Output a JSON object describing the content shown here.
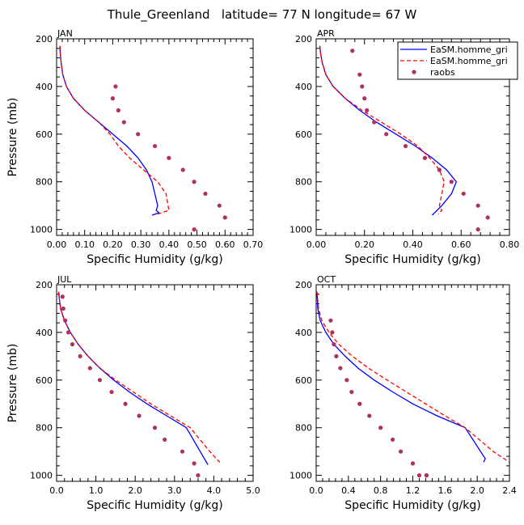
{
  "figure_title": "Thule_Greenland   latitude= 77 N longitude= 67 W",
  "legend": {
    "entries": [
      {
        "label": "EaSM.homme_gri",
        "color": "#0000ff",
        "style": "solid"
      },
      {
        "label": "EaSM.homme_gri",
        "color": "#ff0000",
        "style": "dashed"
      },
      {
        "label": "raobs",
        "color": "#b03060",
        "style": "dot"
      }
    ]
  },
  "chart_data": [
    {
      "type": "line",
      "panel_label": "JAN",
      "xlabel": "Specific Humidity (g/kg)",
      "ylabel": "Pressure (mb)",
      "xlim": [
        0,
        0.7
      ],
      "ylim": [
        200,
        1025
      ],
      "y_inverted": true,
      "xticks": [
        0,
        0.1,
        0.2,
        0.3,
        0.4,
        0.5,
        0.6,
        0.7
      ],
      "xtick_labels": [
        "0.00",
        "0.10",
        "0.20",
        "0.30",
        "0.40",
        "0.50",
        "0.60",
        "0.70"
      ],
      "yticks": [
        200,
        400,
        600,
        800,
        1000
      ],
      "ytick_labels": [
        "200",
        "400",
        "600",
        "800",
        "1000"
      ],
      "series": [
        {
          "color": "#0000ff",
          "style": "solid",
          "x": [
            0.012,
            0.013,
            0.016,
            0.022,
            0.035,
            0.06,
            0.1,
            0.15,
            0.2,
            0.25,
            0.29,
            0.32,
            0.34,
            0.35,
            0.36,
            0.355,
            0.365,
            0.34
          ],
          "y": [
            230,
            260,
            300,
            350,
            400,
            450,
            500,
            550,
            600,
            650,
            700,
            750,
            800,
            850,
            900,
            920,
            930,
            940
          ]
        },
        {
          "color": "#ff0000",
          "style": "dashed",
          "x": [
            0.012,
            0.013,
            0.016,
            0.022,
            0.035,
            0.06,
            0.1,
            0.15,
            0.19,
            0.22,
            0.26,
            0.31,
            0.36,
            0.39,
            0.4,
            0.36
          ],
          "y": [
            230,
            260,
            300,
            350,
            400,
            450,
            500,
            550,
            600,
            650,
            700,
            750,
            800,
            850,
            920,
            935
          ]
        },
        {
          "color": "#b03060",
          "style": "dot",
          "x": [
            0.21,
            0.2,
            0.22,
            0.24,
            0.29,
            0.35,
            0.4,
            0.45,
            0.49,
            0.53,
            0.58,
            0.6,
            0.49
          ],
          "y": [
            400,
            450,
            500,
            550,
            600,
            650,
            700,
            750,
            800,
            850,
            900,
            950,
            1000
          ]
        }
      ]
    },
    {
      "type": "line",
      "panel_label": "APR",
      "xlabel": "Specific Humidity (g/kg)",
      "ylabel": "",
      "xlim": [
        0,
        0.8
      ],
      "ylim": [
        200,
        1025
      ],
      "y_inverted": true,
      "xticks": [
        0,
        0.2,
        0.4,
        0.6,
        0.8
      ],
      "xtick_labels": [
        "0.00",
        "0.20",
        "0.40",
        "0.60",
        "0.80"
      ],
      "yticks": [
        200,
        400,
        600,
        800,
        1000
      ],
      "ytick_labels": [
        "200",
        "400",
        "600",
        "800",
        "1000"
      ],
      "series": [
        {
          "color": "#0000ff",
          "style": "solid",
          "x": [
            0.015,
            0.018,
            0.025,
            0.04,
            0.07,
            0.12,
            0.18,
            0.25,
            0.33,
            0.41,
            0.48,
            0.54,
            0.58,
            0.56,
            0.52,
            0.48
          ],
          "y": [
            230,
            260,
            300,
            350,
            400,
            450,
            500,
            550,
            600,
            650,
            700,
            750,
            800,
            850,
            900,
            940
          ]
        },
        {
          "color": "#ff0000",
          "style": "dashed",
          "x": [
            0.015,
            0.018,
            0.025,
            0.04,
            0.07,
            0.12,
            0.19,
            0.27,
            0.35,
            0.42,
            0.47,
            0.51,
            0.53,
            0.52,
            0.51,
            0.52,
            0.505
          ],
          "y": [
            230,
            260,
            300,
            350,
            400,
            450,
            500,
            550,
            600,
            650,
            700,
            750,
            800,
            850,
            900,
            920,
            935
          ]
        },
        {
          "color": "#b03060",
          "style": "dot",
          "x": [
            0.15,
            0.18,
            0.19,
            0.2,
            0.21,
            0.24,
            0.29,
            0.37,
            0.45,
            0.51,
            0.56,
            0.61,
            0.67,
            0.71,
            0.67
          ],
          "y": [
            250,
            350,
            400,
            450,
            500,
            550,
            600,
            650,
            700,
            750,
            800,
            850,
            900,
            950,
            1000
          ]
        }
      ]
    },
    {
      "type": "line",
      "panel_label": "JUL",
      "xlabel": "Specific Humidity (g/kg)",
      "ylabel": "Pressure (mb)",
      "xlim": [
        0,
        5
      ],
      "ylim": [
        200,
        1025
      ],
      "y_inverted": true,
      "xticks": [
        0,
        1,
        2,
        3,
        4,
        5
      ],
      "xtick_labels": [
        "0.0",
        "1.0",
        "2.0",
        "3.0",
        "4.0",
        "5.0"
      ],
      "yticks": [
        200,
        400,
        600,
        800,
        1000
      ],
      "ytick_labels": [
        "200",
        "400",
        "600",
        "800",
        "1000"
      ],
      "series": [
        {
          "color": "#0000ff",
          "style": "solid",
          "x": [
            0.05,
            0.1,
            0.2,
            0.35,
            0.55,
            0.8,
            1.1,
            1.45,
            1.85,
            2.3,
            2.8,
            3.3,
            3.85
          ],
          "y": [
            230,
            300,
            350,
            400,
            450,
            500,
            550,
            600,
            650,
            700,
            750,
            800,
            955
          ]
        },
        {
          "color": "#ff0000",
          "style": "dashed",
          "x": [
            0.05,
            0.1,
            0.2,
            0.35,
            0.55,
            0.8,
            1.1,
            1.5,
            1.95,
            2.4,
            2.9,
            3.4,
            3.9,
            4.15
          ],
          "y": [
            230,
            300,
            350,
            400,
            450,
            500,
            550,
            600,
            650,
            700,
            750,
            800,
            900,
            945
          ]
        },
        {
          "color": "#b03060",
          "style": "dot",
          "x": [
            0.15,
            0.17,
            0.22,
            0.3,
            0.4,
            0.6,
            0.85,
            1.1,
            1.4,
            1.75,
            2.1,
            2.5,
            2.75,
            3.2,
            3.5,
            3.6
          ],
          "y": [
            250,
            300,
            350,
            400,
            450,
            500,
            550,
            600,
            650,
            700,
            750,
            800,
            850,
            900,
            950,
            1000
          ]
        }
      ]
    },
    {
      "type": "line",
      "panel_label": "OCT",
      "xlabel": "Specific Humidity (g/kg)",
      "ylabel": "",
      "xlim": [
        0,
        2.4
      ],
      "ylim": [
        200,
        1025
      ],
      "y_inverted": true,
      "xticks": [
        0,
        0.4,
        0.8,
        1.2,
        1.6,
        2.0,
        2.4
      ],
      "xtick_labels": [
        "0.0",
        "0.4",
        "0.8",
        "1.2",
        "1.6",
        "2.0",
        "2.4"
      ],
      "yticks": [
        200,
        400,
        600,
        800,
        1000
      ],
      "ytick_labels": [
        "200",
        "400",
        "600",
        "800",
        "1000"
      ],
      "series": [
        {
          "color": "#0000ff",
          "style": "solid",
          "x": [
            0.01,
            0.02,
            0.05,
            0.12,
            0.22,
            0.36,
            0.52,
            0.72,
            0.95,
            1.2,
            1.5,
            1.85,
            2.1,
            2.08
          ],
          "y": [
            230,
            300,
            350,
            400,
            450,
            500,
            550,
            600,
            650,
            700,
            750,
            800,
            930,
            945
          ]
        },
        {
          "color": "#ff0000",
          "style": "dashed",
          "x": [
            0.01,
            0.03,
            0.07,
            0.16,
            0.28,
            0.45,
            0.65,
            0.88,
            1.12,
            1.36,
            1.6,
            1.85,
            2.2,
            2.4
          ],
          "y": [
            230,
            300,
            350,
            400,
            450,
            500,
            550,
            600,
            650,
            700,
            750,
            800,
            900,
            945
          ]
        },
        {
          "color": "#b03060",
          "style": "dot",
          "x": [
            0.18,
            0.2,
            0.22,
            0.25,
            0.3,
            0.38,
            0.44,
            0.54,
            0.66,
            0.8,
            0.95,
            1.05,
            1.2,
            1.28,
            1.37,
            1.37
          ],
          "y": [
            350,
            400,
            450,
            500,
            550,
            600,
            650,
            700,
            750,
            800,
            850,
            900,
            950,
            1000,
            1000,
            1000
          ]
        }
      ]
    }
  ]
}
